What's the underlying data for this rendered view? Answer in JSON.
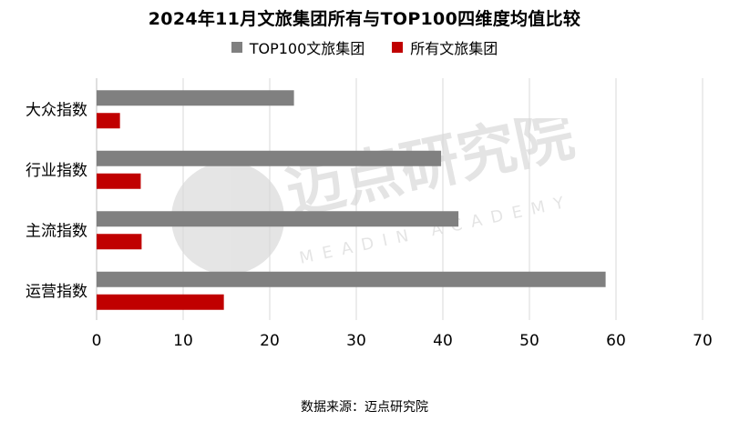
{
  "title": "2024年11月文旅集团所有与TOP100四维度均值比较",
  "source": "数据来源：迈点研究院",
  "watermark": {
    "main": "迈点研究院",
    "sub": "MEADIN ACADEMY"
  },
  "colors": {
    "top100": "#808080",
    "all": "#c00000",
    "grid": "#d9d9d9",
    "axis": "#bfbfbf"
  },
  "chart_data": {
    "type": "bar",
    "orientation": "horizontal",
    "title": "2024年11月文旅集团所有与TOP100四维度均值比较",
    "categories": [
      "大众指数",
      "行业指数",
      "主流指数",
      "运营指数"
    ],
    "series": [
      {
        "name": "TOP100文旅集团",
        "values": [
          22.8,
          39.8,
          41.8,
          58.8
        ]
      },
      {
        "name": "所有文旅集团",
        "values": [
          2.7,
          5.1,
          5.2,
          14.7
        ]
      }
    ],
    "xlim": [
      0,
      70
    ],
    "xticks": [
      "0",
      "10",
      "20",
      "30",
      "40",
      "50",
      "60",
      "70"
    ],
    "grid": true,
    "legend": "top"
  }
}
